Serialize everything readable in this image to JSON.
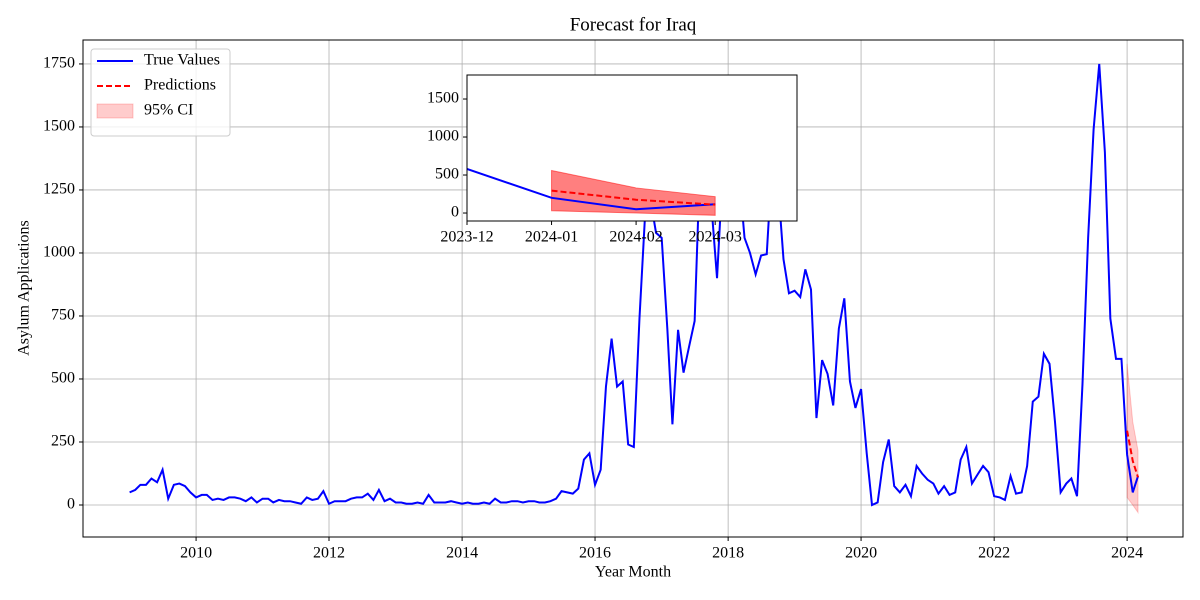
{
  "chart_data": [
    {
      "type": "line",
      "title": "Forecast for Iraq",
      "xlabel": "Year Month",
      "ylabel": "Asylum Applications",
      "x": [
        "2009-01",
        "2009-02",
        "2009-03",
        "2009-04",
        "2009-05",
        "2009-06",
        "2009-07",
        "2009-08",
        "2009-09",
        "2009-10",
        "2009-11",
        "2009-12",
        "2010-01",
        "2010-02",
        "2010-03",
        "2010-04",
        "2010-05",
        "2010-06",
        "2010-07",
        "2010-08",
        "2010-09",
        "2010-10",
        "2010-11",
        "2010-12",
        "2011-01",
        "2011-02",
        "2011-03",
        "2011-04",
        "2011-05",
        "2011-06",
        "2011-07",
        "2011-08",
        "2011-09",
        "2011-10",
        "2011-11",
        "2011-12",
        "2012-01",
        "2012-02",
        "2012-03",
        "2012-04",
        "2012-05",
        "2012-06",
        "2012-07",
        "2012-08",
        "2012-09",
        "2012-10",
        "2012-11",
        "2012-12",
        "2013-01",
        "2013-02",
        "2013-03",
        "2013-04",
        "2013-05",
        "2013-06",
        "2013-07",
        "2013-08",
        "2013-09",
        "2013-10",
        "2013-11",
        "2013-12",
        "2014-01",
        "2014-02",
        "2014-03",
        "2014-04",
        "2014-05",
        "2014-06",
        "2014-07",
        "2014-08",
        "2014-09",
        "2014-10",
        "2014-11",
        "2014-12",
        "2015-01",
        "2015-02",
        "2015-03",
        "2015-04",
        "2015-05",
        "2015-06",
        "2015-07",
        "2015-08",
        "2015-09",
        "2015-10",
        "2015-11",
        "2015-12",
        "2016-01",
        "2016-02",
        "2016-03",
        "2016-04",
        "2016-05",
        "2016-06",
        "2016-07",
        "2016-08",
        "2016-09",
        "2016-10",
        "2016-11",
        "2016-12",
        "2017-01",
        "2017-02",
        "2017-03",
        "2017-04",
        "2017-05",
        "2017-06",
        "2017-07",
        "2017-08",
        "2017-09",
        "2017-10",
        "2017-11",
        "2017-12",
        "2018-01",
        "2018-02",
        "2018-03",
        "2018-04",
        "2018-05",
        "2018-06",
        "2018-07",
        "2018-08",
        "2018-09",
        "2018-10",
        "2018-11",
        "2018-12",
        "2019-01",
        "2019-02",
        "2019-03",
        "2019-04",
        "2019-05",
        "2019-06",
        "2019-07",
        "2019-08",
        "2019-09",
        "2019-10",
        "2019-11",
        "2019-12",
        "2020-01",
        "2020-02",
        "2020-03",
        "2020-04",
        "2020-05",
        "2020-06",
        "2020-07",
        "2020-08",
        "2020-09",
        "2020-10",
        "2020-11",
        "2020-12",
        "2021-01",
        "2021-02",
        "2021-03",
        "2021-04",
        "2021-05",
        "2021-06",
        "2021-07",
        "2021-08",
        "2021-09",
        "2021-10",
        "2021-11",
        "2021-12",
        "2022-01",
        "2022-02",
        "2022-03",
        "2022-04",
        "2022-05",
        "2022-06",
        "2022-07",
        "2022-08",
        "2022-09",
        "2022-10",
        "2022-11",
        "2022-12",
        "2023-01",
        "2023-02",
        "2023-03",
        "2023-04",
        "2023-05",
        "2023-06",
        "2023-07",
        "2023-08",
        "2023-09",
        "2023-10",
        "2023-11",
        "2023-12",
        "2024-01",
        "2024-02",
        "2024-03"
      ],
      "series": [
        {
          "name": "True Values",
          "color": "#0000ff",
          "values": [
            50,
            60,
            80,
            80,
            105,
            90,
            140,
            25,
            80,
            85,
            75,
            50,
            30,
            40,
            40,
            20,
            25,
            20,
            30,
            30,
            25,
            15,
            30,
            10,
            25,
            25,
            10,
            20,
            15,
            15,
            10,
            5,
            30,
            20,
            25,
            55,
            5,
            15,
            15,
            15,
            25,
            30,
            30,
            45,
            20,
            60,
            15,
            25,
            10,
            10,
            5,
            5,
            10,
            5,
            40,
            10,
            10,
            10,
            15,
            10,
            5,
            10,
            5,
            5,
            10,
            5,
            25,
            10,
            10,
            15,
            15,
            10,
            15,
            15,
            10,
            10,
            15,
            25,
            55,
            50,
            45,
            65,
            180,
            205,
            80,
            140,
            470,
            660,
            470,
            490,
            240,
            230,
            740,
            1140,
            1210,
            1080,
            1060,
            700,
            320,
            695,
            525,
            630,
            730,
            1390,
            1280,
            1190,
            900,
            1310,
            1150,
            1310,
            1320,
            1060,
            1000,
            915,
            990,
            995,
            1380,
            1280,
            975,
            840,
            850,
            825,
            935,
            855,
            345,
            575,
            520,
            395,
            700,
            820,
            490,
            385,
            460,
            205,
            0,
            10,
            170,
            260,
            75,
            50,
            80,
            35,
            155,
            125,
            100,
            85,
            45,
            75,
            40,
            50,
            180,
            230,
            85,
            120,
            155,
            130,
            35,
            30,
            20,
            115,
            45,
            50,
            155,
            410,
            430,
            600,
            560,
            330,
            50,
            85,
            105,
            35,
            480,
            1060,
            1490,
            1750,
            1400,
            740,
            580,
            580,
            200,
            50,
            115
          ]
        },
        {
          "name": "Predictions",
          "color": "#ff0000",
          "dashed": true,
          "x": [
            "2024-01",
            "2024-02",
            "2024-03"
          ],
          "values": [
            295,
            175,
            110
          ]
        }
      ],
      "band": {
        "name": "95% CI",
        "color": "#ff0000",
        "opacity": 0.2,
        "x": [
          "2024-01",
          "2024-02",
          "2024-03"
        ],
        "lower": [
          30,
          0,
          -30
        ],
        "upper": [
          560,
          330,
          215
        ]
      },
      "xlim": [
        "2008-04-20",
        "2024-11-03"
      ],
      "ylim": [
        -127,
        1845
      ],
      "xticks": [
        "2010",
        "2012",
        "2014",
        "2016",
        "2018",
        "2020",
        "2022",
        "2024"
      ],
      "yticks": [
        0,
        250,
        500,
        750,
        1000,
        1250,
        1500,
        1750
      ],
      "grid": true,
      "legend": "upper left"
    },
    {
      "type": "line",
      "x": [
        "2023-12",
        "2024-01",
        "2024-02",
        "2024-03"
      ],
      "series": [
        {
          "color": "#0000ff",
          "values": [
            580,
            200,
            50,
            115
          ]
        },
        {
          "color": "#ff0000",
          "dashed": true,
          "x": [
            "2024-01",
            "2024-02",
            "2024-03"
          ],
          "values": [
            295,
            175,
            110
          ]
        }
      ],
      "band": {
        "color": "#ff0000",
        "opacity": 0.5,
        "x": [
          "2024-01",
          "2024-02",
          "2024-03"
        ],
        "lower": [
          30,
          0,
          -30
        ],
        "upper": [
          560,
          330,
          215
        ]
      },
      "xlim": [
        "2023-12",
        "2024-03-31"
      ],
      "ylim": [
        -105,
        1816
      ],
      "xticks": [
        "2023-12",
        "2024-01",
        "2024-02",
        "2024-03"
      ],
      "yticks": [
        0,
        500,
        1000,
        1500
      ],
      "grid": false
    }
  ]
}
